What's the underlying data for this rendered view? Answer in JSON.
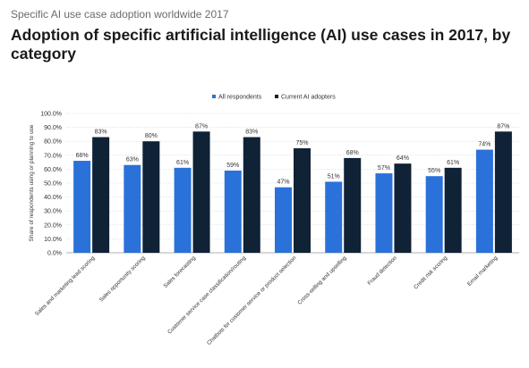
{
  "subtitle": "Specific AI use case adoption worldwide 2017",
  "title": "Adoption of specific artificial intelligence (AI) use cases in 2017, by category",
  "colors": {
    "all_respondents": "#2a72d9",
    "current_ai_adopters": "#0f2236",
    "grid": "#cfcfcf",
    "axis": "#999999"
  },
  "chart_data": {
    "type": "bar",
    "title": "Adoption of specific artificial intelligence (AI) use cases in 2017, by category",
    "xlabel": "",
    "ylabel": "Share of respondents using or planning to use",
    "ylim": [
      0,
      100
    ],
    "yticks": [
      "0.0%",
      "10.0%",
      "20.0%",
      "30.0%",
      "40.0%",
      "50.0%",
      "60.0%",
      "70.0%",
      "80.0%",
      "90.0%",
      "100.0%"
    ],
    "legend_position": "top-center",
    "grid": true,
    "categories": [
      "Sales and marketing lead scoring",
      "Sales opportunity scoring",
      "Sales forecasting",
      "Customer service case classification/routing",
      "Chatbots for customer service or product selection",
      "Cross-selling and upselling",
      "Fraud detection",
      "Credit risk scoring",
      "Email marketing"
    ],
    "series": [
      {
        "name": "All respondents",
        "values": [
          66,
          63,
          61,
          59,
          47,
          51,
          57,
          55,
          74
        ],
        "labels": [
          "66%",
          "63%",
          "61%",
          "59%",
          "47%",
          "51%",
          "57%",
          "55%",
          "74%"
        ]
      },
      {
        "name": "Current AI adopters",
        "values": [
          83,
          80,
          87,
          83,
          75,
          68,
          64,
          61,
          87
        ],
        "labels": [
          "83%",
          "80%",
          "87%",
          "83%",
          "75%",
          "68%",
          "64%",
          "61%",
          "87%"
        ]
      }
    ]
  }
}
